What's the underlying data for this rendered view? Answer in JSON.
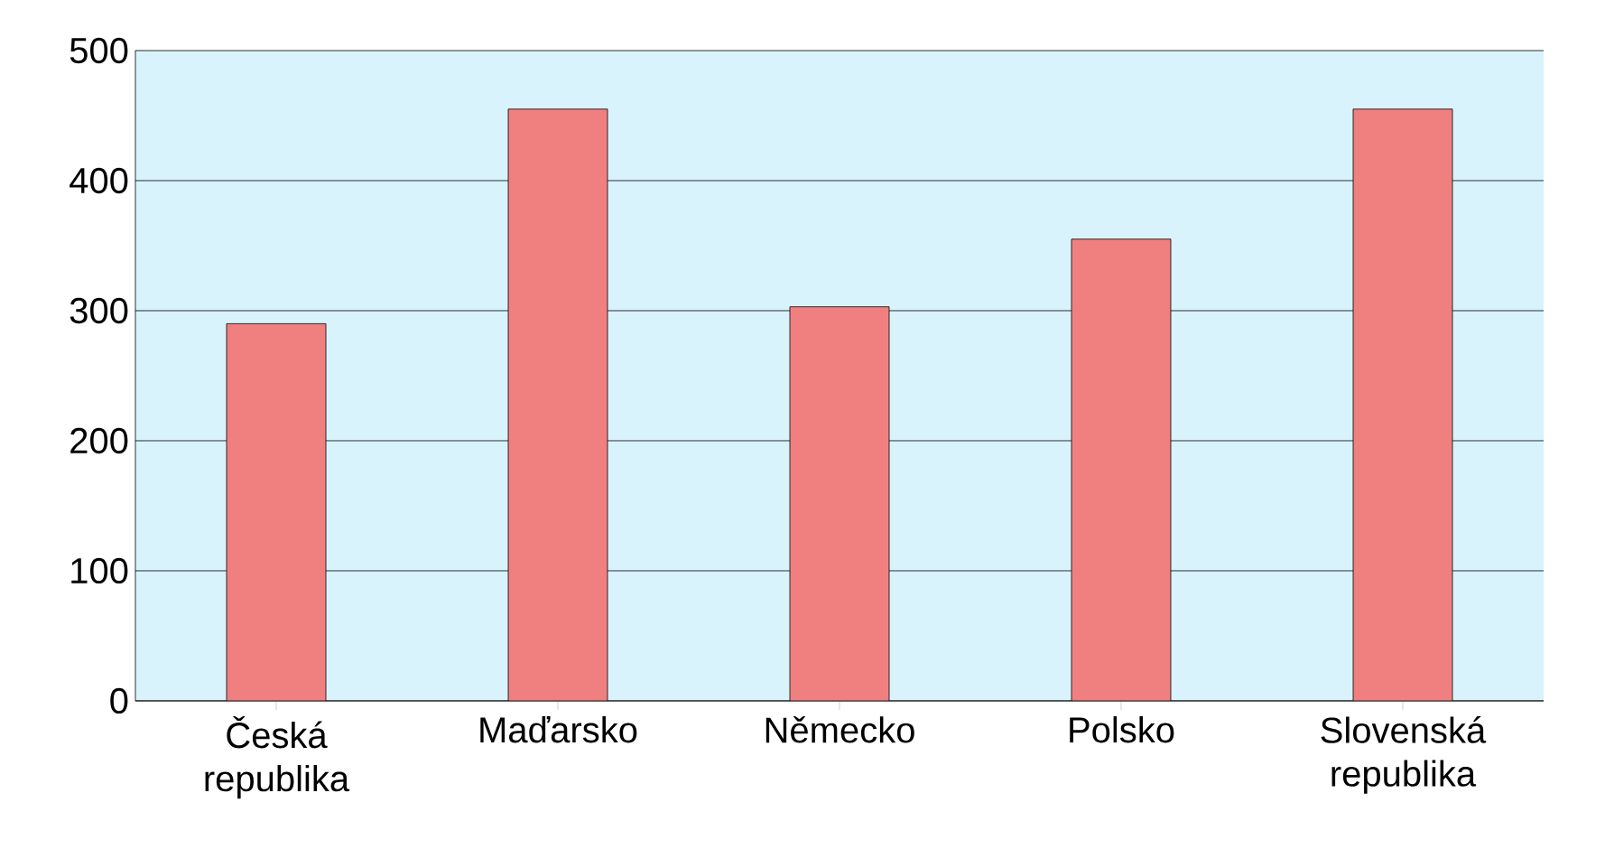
{
  "chart_data": {
    "type": "bar",
    "categories": [
      "Česká republika",
      "Maďarsko",
      "Německo",
      "Polsko",
      "Slovenská republika"
    ],
    "values": [
      290,
      455,
      303,
      355,
      455
    ],
    "color": "#f08080",
    "ylim": [
      0,
      500
    ],
    "yticks": [
      0,
      100,
      200,
      300,
      400,
      500
    ],
    "grid": "y"
  }
}
